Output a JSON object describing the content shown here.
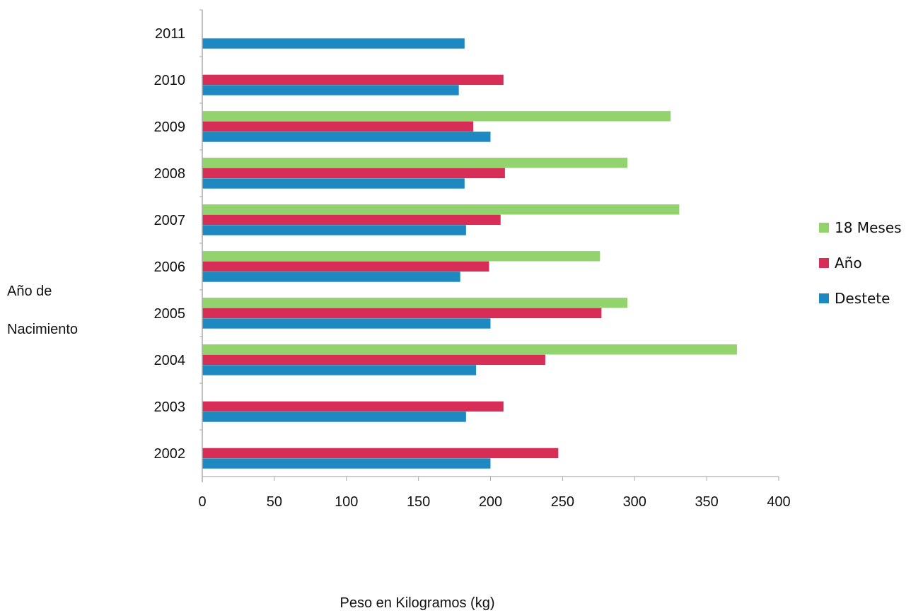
{
  "chart_data": {
    "type": "bar",
    "orientation": "horizontal",
    "title": "",
    "categories": [
      "2002",
      "2003",
      "2004",
      "2005",
      "2006",
      "2007",
      "2008",
      "2009",
      "2010",
      "2011"
    ],
    "series": [
      {
        "name": "Destete",
        "color": "#1e88c0",
        "values": [
          200,
          183,
          190,
          200,
          179,
          183,
          182,
          200,
          178,
          182
        ]
      },
      {
        "name": "Año",
        "color": "#d62e56",
        "values": [
          247,
          209,
          238,
          277,
          199,
          207,
          210,
          188,
          209,
          null
        ]
      },
      {
        "name": "18 Meses",
        "color": "#92d36e",
        "values": [
          null,
          null,
          371,
          295,
          276,
          331,
          295,
          325,
          null,
          null
        ]
      }
    ],
    "legend_order": [
      "18 Meses",
      "Año",
      "Destete"
    ],
    "legend_position": "right",
    "xlabel": "Peso en Kilogramos (kg)",
    "ylabel_lines": [
      "Año de",
      "Nacimiento"
    ],
    "xlim": [
      0,
      400
    ],
    "xticks": [
      0,
      50,
      100,
      150,
      200,
      250,
      300,
      350,
      400
    ],
    "grid": false
  }
}
